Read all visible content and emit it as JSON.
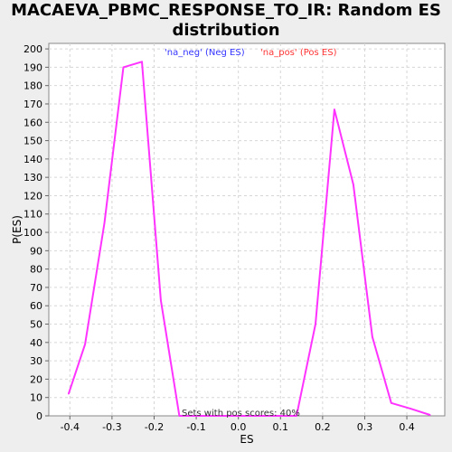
{
  "chart_data": {
    "type": "line",
    "title": "MACAEVA_PBMC_RESPONSE_TO_IR: Random ES distribution",
    "title_lines": [
      "MACAEVA_PBMC_RESPONSE_TO_IR: Random ES",
      "distribution"
    ],
    "xlabel": "ES",
    "ylabel": "P(ES)",
    "xlim": [
      -0.45,
      0.49
    ],
    "ylim": [
      0,
      203
    ],
    "x_ticks": [
      "-0.4",
      "-0.3",
      "-0.2",
      "-0.1",
      "0.0",
      "0.1",
      "0.2",
      "0.3",
      "0.4"
    ],
    "y_ticks": [
      "0",
      "10",
      "20",
      "30",
      "40",
      "50",
      "60",
      "70",
      "80",
      "90",
      "100",
      "110",
      "120",
      "130",
      "140",
      "150",
      "160",
      "170",
      "180",
      "190",
      "200"
    ],
    "grid": true,
    "legend": [
      {
        "label": "'na_neg' (Neg ES)",
        "color": "#3333ff"
      },
      {
        "label": "'na_pos' (Pos ES)",
        "color": "#ff3333"
      }
    ],
    "annotation": "Sets with pos scores: 40%",
    "line_color": "#ff33ff",
    "series": [
      {
        "x": [
          -0.403,
          -0.364,
          -0.318,
          -0.273,
          -0.229,
          -0.184,
          -0.14,
          -0.095,
          -0.05,
          0.0,
          0.05,
          0.095,
          0.138,
          0.183,
          0.228,
          0.273,
          0.318,
          0.363,
          0.408,
          0.455
        ],
        "y": [
          12,
          39,
          105,
          190,
          193,
          63,
          0,
          0,
          0,
          0,
          0,
          0,
          0,
          50,
          167,
          126,
          43,
          7,
          4,
          0.5
        ]
      }
    ]
  }
}
